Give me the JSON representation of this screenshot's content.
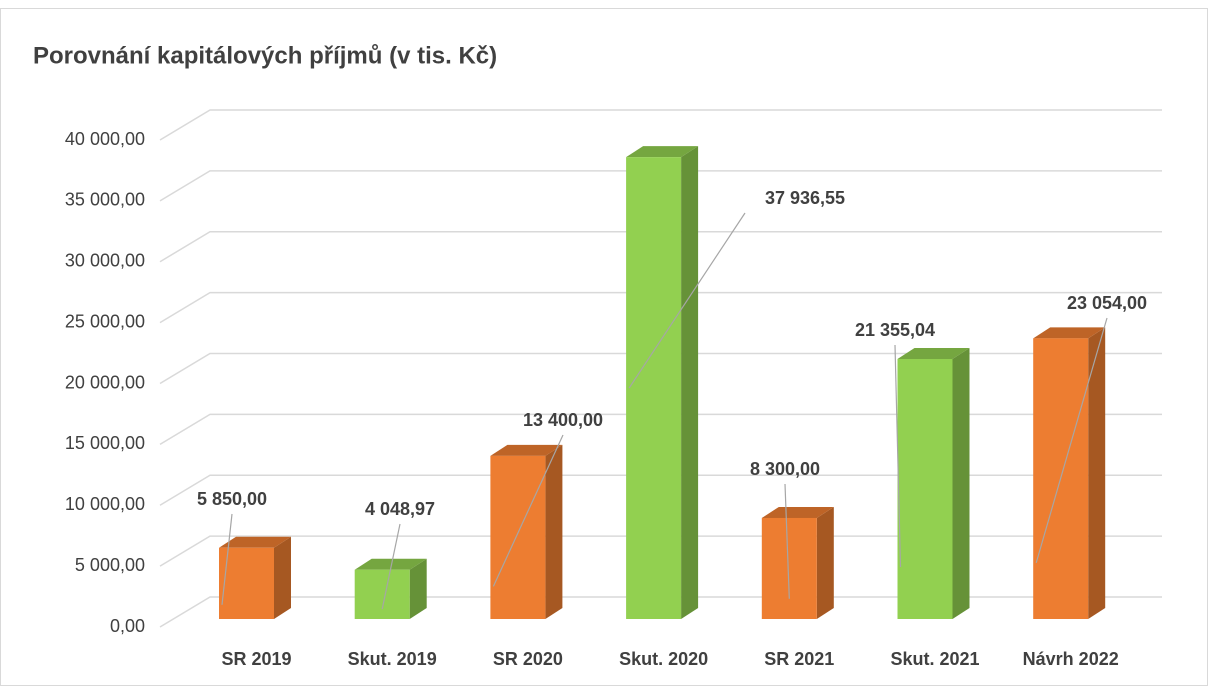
{
  "chart_data": {
    "type": "bar3d",
    "title": "Porovnání kapitálových příjmů (v tis. Kč)",
    "categories": [
      "SR 2019",
      "Skut. 2019",
      "SR 2020",
      "Skut. 2020",
      "SR 2021",
      "Skut. 2021",
      "Návrh 2022"
    ],
    "values": [
      5850,
      4048.97,
      13400,
      37936.55,
      8300,
      21355.04,
      23054
    ],
    "value_labels": [
      "5 850,00",
      "4 048,97",
      "13 400,00",
      "37 936,55",
      "8 300,00",
      "21 355,04",
      "23 054,00"
    ],
    "colors": [
      "#ed7d31",
      "#92d050",
      "#ed7d31",
      "#92d050",
      "#ed7d31",
      "#92d050",
      "#ed7d31"
    ],
    "ylim": [
      0,
      40000
    ],
    "yticks": [
      {
        "value": 0,
        "label": "0,00"
      },
      {
        "value": 5000,
        "label": "5 000,00"
      },
      {
        "value": 10000,
        "label": "10 000,00"
      },
      {
        "value": 15000,
        "label": "15 000,00"
      },
      {
        "value": 20000,
        "label": "20 000,00"
      },
      {
        "value": 25000,
        "label": "25 000,00"
      },
      {
        "value": 30000,
        "label": "30 000,00"
      },
      {
        "value": 35000,
        "label": "35 000,00"
      },
      {
        "value": 40000,
        "label": "40 000,00"
      }
    ],
    "grid": true
  }
}
